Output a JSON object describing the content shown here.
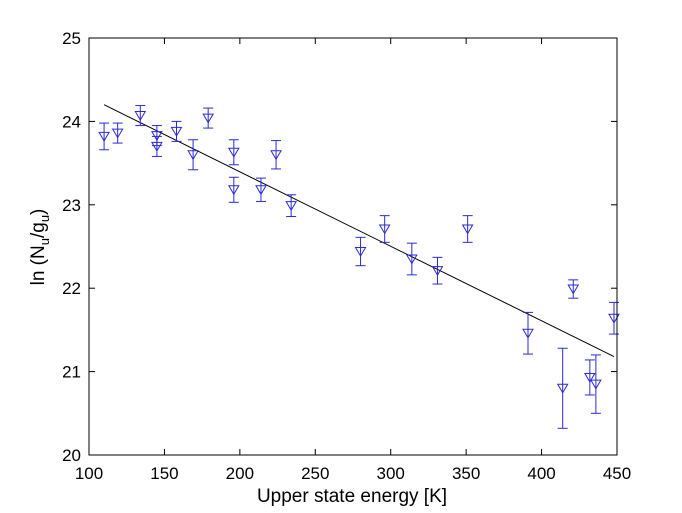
{
  "chart_data": {
    "type": "scatter",
    "title": "",
    "xlabel": "Upper state energy [K]",
    "ylabel": {
      "prefix": "ln (N",
      "sub1": "u",
      "mid": "/g",
      "sub2": "u",
      "suffix": ")"
    },
    "xlim": [
      100,
      450
    ],
    "ylim": [
      20,
      25
    ],
    "xticks": [
      "100",
      "150",
      "200",
      "250",
      "300",
      "350",
      "400",
      "450"
    ],
    "yticks": [
      "20",
      "21",
      "22",
      "23",
      "24",
      "25"
    ],
    "marker": "triangle-down",
    "marker_color": "#2a2ad6",
    "points": [
      {
        "x": 110,
        "y": 23.82,
        "err": 0.16
      },
      {
        "x": 119,
        "y": 23.86,
        "err": 0.12
      },
      {
        "x": 134,
        "y": 24.07,
        "err": 0.12
      },
      {
        "x": 145,
        "y": 23.83,
        "err": 0.12
      },
      {
        "x": 145,
        "y": 23.7,
        "err": 0.12
      },
      {
        "x": 158,
        "y": 23.88,
        "err": 0.12
      },
      {
        "x": 169,
        "y": 23.6,
        "err": 0.18
      },
      {
        "x": 179,
        "y": 24.04,
        "err": 0.12
      },
      {
        "x": 196,
        "y": 23.63,
        "err": 0.15
      },
      {
        "x": 196,
        "y": 23.18,
        "err": 0.15
      },
      {
        "x": 214,
        "y": 23.18,
        "err": 0.14
      },
      {
        "x": 224,
        "y": 23.6,
        "err": 0.17
      },
      {
        "x": 234,
        "y": 22.99,
        "err": 0.13
      },
      {
        "x": 280,
        "y": 22.44,
        "err": 0.17
      },
      {
        "x": 296,
        "y": 22.71,
        "err": 0.16
      },
      {
        "x": 314,
        "y": 22.35,
        "err": 0.19
      },
      {
        "x": 331,
        "y": 22.21,
        "err": 0.16
      },
      {
        "x": 351,
        "y": 22.71,
        "err": 0.16
      },
      {
        "x": 391,
        "y": 21.46,
        "err": 0.25
      },
      {
        "x": 414,
        "y": 20.8,
        "err": 0.48
      },
      {
        "x": 421,
        "y": 21.99,
        "err": 0.11
      },
      {
        "x": 432,
        "y": 20.93,
        "err": 0.21
      },
      {
        "x": 436,
        "y": 20.85,
        "err": 0.35
      },
      {
        "x": 448,
        "y": 21.64,
        "err": 0.19
      }
    ],
    "fit_line": {
      "x": [
        110,
        448
      ],
      "y": [
        24.2,
        21.18
      ],
      "color": "#000000"
    },
    "grid": false,
    "legend": null
  }
}
